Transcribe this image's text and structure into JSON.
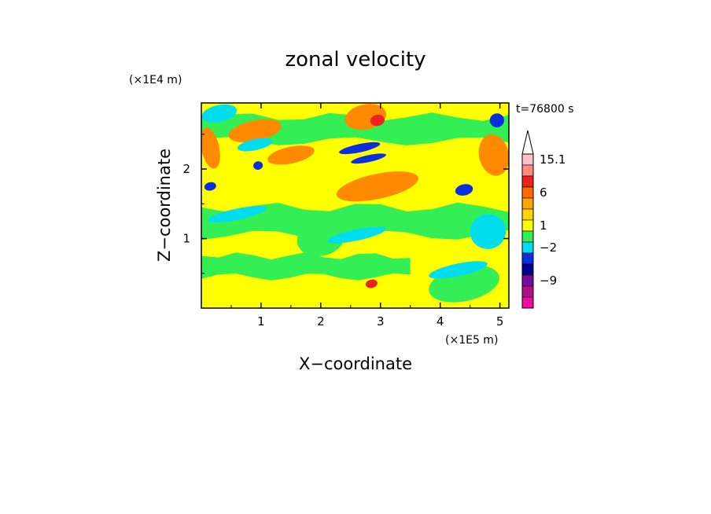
{
  "chart_data": {
    "type": "heatmap",
    "title": "zonal velocity",
    "xlabel": "X−coordinate",
    "ylabel": "Z−coordinate",
    "x_unit": "(×1E5 m)",
    "y_unit": "(×1E4 m)",
    "time_label": "t=76800 s",
    "xlim": [
      0,
      5.15
    ],
    "ylim": [
      0,
      2.95
    ],
    "x_ticks": [
      "1",
      "2",
      "3",
      "4",
      "5"
    ],
    "y_ticks": [
      "1",
      "2"
    ],
    "colorbar": {
      "labels": [
        "15.1",
        "6",
        "1",
        "−2",
        "−9"
      ],
      "levels": [
        {
          "color": "#ffc0cb"
        },
        {
          "color": "#ff8a80"
        },
        {
          "color": "#ee2020"
        },
        {
          "color": "#ff6a00"
        },
        {
          "color": "#ffa500"
        },
        {
          "color": "#ffd200"
        },
        {
          "color": "#ffff00"
        },
        {
          "color": "#33ee55"
        },
        {
          "color": "#00ddee"
        },
        {
          "color": "#0a2ee0"
        },
        {
          "color": "#00008b"
        },
        {
          "color": "#7a0a9a"
        },
        {
          "color": "#b0108a"
        },
        {
          "color": "#ee0aa0"
        }
      ]
    },
    "background_color": "#ffff00",
    "features": [
      {
        "kind": "band",
        "color": "#33ee55",
        "x": [
          0.0,
          5.15
        ],
        "z": [
          1.05,
          1.45
        ]
      },
      {
        "kind": "band",
        "color": "#33ee55",
        "x": [
          0.0,
          3.5
        ],
        "z": [
          0.45,
          0.75
        ]
      },
      {
        "kind": "band",
        "color": "#33ee55",
        "x": [
          0.0,
          5.15
        ],
        "z": [
          2.4,
          2.75
        ]
      },
      {
        "kind": "blob",
        "color": "#ff8a00",
        "x": 0.9,
        "z": 2.55,
        "rx": 0.45,
        "rz": 0.15
      },
      {
        "kind": "blob",
        "color": "#ff8a00",
        "x": 0.15,
        "z": 2.3,
        "rx": 0.15,
        "rz": 0.3
      },
      {
        "kind": "blob",
        "color": "#ff8a00",
        "x": 1.5,
        "z": 2.2,
        "rx": 0.4,
        "rz": 0.12
      },
      {
        "kind": "blob",
        "color": "#ff8a00",
        "x": 2.95,
        "z": 1.75,
        "rx": 0.7,
        "rz": 0.18
      },
      {
        "kind": "blob",
        "color": "#ff8a00",
        "x": 4.9,
        "z": 2.2,
        "rx": 0.25,
        "rz": 0.3
      },
      {
        "kind": "blob",
        "color": "#ff8a00",
        "x": 2.75,
        "z": 2.75,
        "rx": 0.35,
        "rz": 0.18
      },
      {
        "kind": "blob",
        "color": "#33ee55",
        "x": 2.0,
        "z": 1.0,
        "rx": 0.4,
        "rz": 0.25
      },
      {
        "kind": "blob",
        "color": "#33ee55",
        "x": 4.4,
        "z": 0.35,
        "rx": 0.6,
        "rz": 0.25
      },
      {
        "kind": "blob",
        "color": "#00ddee",
        "x": 0.6,
        "z": 1.35,
        "rx": 0.5,
        "rz": 0.08
      },
      {
        "kind": "blob",
        "color": "#00ddee",
        "x": 0.9,
        "z": 2.35,
        "rx": 0.3,
        "rz": 0.08
      },
      {
        "kind": "blob",
        "color": "#00ddee",
        "x": 2.6,
        "z": 1.05,
        "rx": 0.5,
        "rz": 0.08
      },
      {
        "kind": "blob",
        "color": "#00ddee",
        "x": 4.3,
        "z": 0.55,
        "rx": 0.5,
        "rz": 0.09
      },
      {
        "kind": "blob",
        "color": "#00ddee",
        "x": 0.3,
        "z": 2.8,
        "rx": 0.3,
        "rz": 0.12
      },
      {
        "kind": "blob",
        "color": "#00ddee",
        "x": 4.8,
        "z": 1.1,
        "rx": 0.3,
        "rz": 0.25
      },
      {
        "kind": "blob",
        "color": "#0a2ee0",
        "x": 2.65,
        "z": 2.3,
        "rx": 0.35,
        "rz": 0.06
      },
      {
        "kind": "blob",
        "color": "#0a2ee0",
        "x": 2.8,
        "z": 2.15,
        "rx": 0.3,
        "rz": 0.05
      },
      {
        "kind": "blob",
        "color": "#0a2ee0",
        "x": 0.15,
        "z": 1.75,
        "rx": 0.1,
        "rz": 0.06
      },
      {
        "kind": "blob",
        "color": "#0a2ee0",
        "x": 0.95,
        "z": 2.05,
        "rx": 0.08,
        "rz": 0.06
      },
      {
        "kind": "blob",
        "color": "#0a2ee0",
        "x": 4.95,
        "z": 2.7,
        "rx": 0.12,
        "rz": 0.1
      },
      {
        "kind": "blob",
        "color": "#0a2ee0",
        "x": 4.4,
        "z": 1.7,
        "rx": 0.15,
        "rz": 0.08
      },
      {
        "kind": "blob",
        "color": "#ee2020",
        "x": 2.95,
        "z": 2.7,
        "rx": 0.12,
        "rz": 0.08
      },
      {
        "kind": "blob",
        "color": "#ee2020",
        "x": 2.85,
        "z": 0.35,
        "rx": 0.1,
        "rz": 0.06
      }
    ]
  }
}
